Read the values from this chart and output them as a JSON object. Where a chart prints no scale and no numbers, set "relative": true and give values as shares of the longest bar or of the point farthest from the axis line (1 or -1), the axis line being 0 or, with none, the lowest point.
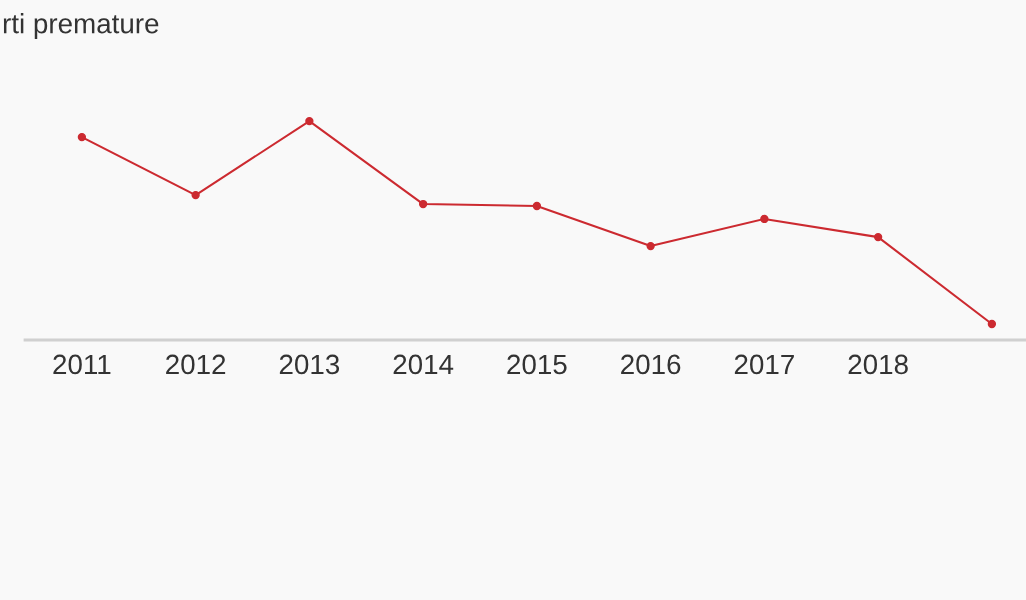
{
  "chart_data": {
    "type": "line",
    "title": "rti premature",
    "relative": true,
    "categories": [
      "2011",
      "2012",
      "2013",
      "2014",
      "2015",
      "2016",
      "2017",
      "2018",
      null
    ],
    "series": [
      {
        "color": "#cc2a30",
        "values": [
          0.927,
          0.662,
          1,
          0.621,
          0.612,
          0.429,
          0.553,
          0.47,
          0.073
        ]
      }
    ],
    "marker": "circle",
    "line_style": "solid",
    "grid": false,
    "legend": false
  }
}
